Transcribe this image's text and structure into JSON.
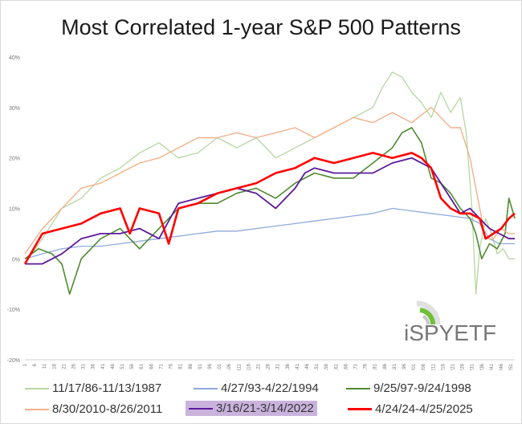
{
  "title": "Most Correlated 1-year S&P 500 Patterns",
  "logo_text": "iSPYETF",
  "chart_data": {
    "type": "line",
    "title": "Most Correlated 1-year S&P 500 Patterns",
    "xlabel": "",
    "ylabel": "",
    "xlim": [
      1,
      253
    ],
    "ylim": [
      -0.2,
      0.4
    ],
    "yticks": [
      -0.2,
      -0.1,
      0,
      0.1,
      0.2,
      0.3,
      0.4
    ],
    "ytick_labels": [
      "-20%",
      "-10%",
      "0%",
      "10%",
      "20%",
      "30%",
      "40%"
    ],
    "xticks": [
      1,
      6,
      11,
      16,
      21,
      26,
      31,
      36,
      41,
      46,
      51,
      56,
      61,
      66,
      71,
      76,
      81,
      86,
      91,
      96,
      101,
      106,
      111,
      116,
      121,
      126,
      131,
      136,
      141,
      146,
      151,
      156,
      161,
      166,
      171,
      176,
      181,
      186,
      191,
      196,
      201,
      206,
      211,
      216,
      221,
      226,
      231,
      236,
      241,
      246,
      251
    ],
    "grid": false,
    "legend_position": "bottom",
    "series": [
      {
        "name": "11/17/86-11/13/1987",
        "color": "#b5d6a2",
        "width": 1.3,
        "x": [
          1,
          10,
          20,
          30,
          40,
          50,
          60,
          70,
          80,
          90,
          100,
          110,
          120,
          130,
          140,
          150,
          160,
          170,
          180,
          185,
          190,
          195,
          200,
          205,
          210,
          215,
          220,
          225,
          228,
          231,
          233,
          235,
          238,
          241,
          244,
          247,
          250,
          253
        ],
        "y": [
          -0.01,
          0.04,
          0.1,
          0.12,
          0.16,
          0.18,
          0.21,
          0.23,
          0.2,
          0.21,
          0.24,
          0.22,
          0.24,
          0.2,
          0.22,
          0.24,
          0.26,
          0.28,
          0.3,
          0.34,
          0.37,
          0.36,
          0.33,
          0.31,
          0.28,
          0.33,
          0.29,
          0.32,
          0.25,
          0.1,
          -0.07,
          0.02,
          0.08,
          0.05,
          0.01,
          0.02,
          0.0,
          0.0
        ]
      },
      {
        "name": "4/27/93-4/22/1994",
        "color": "#8eaadb",
        "width": 1.3,
        "x": [
          1,
          10,
          20,
          30,
          40,
          50,
          60,
          70,
          80,
          90,
          100,
          110,
          120,
          130,
          140,
          150,
          160,
          170,
          180,
          190,
          200,
          210,
          220,
          230,
          235,
          240,
          245,
          250,
          253
        ],
        "y": [
          0.0,
          0.01,
          0.02,
          0.025,
          0.025,
          0.03,
          0.035,
          0.04,
          0.045,
          0.05,
          0.055,
          0.055,
          0.06,
          0.065,
          0.07,
          0.075,
          0.08,
          0.085,
          0.09,
          0.1,
          0.095,
          0.09,
          0.085,
          0.08,
          0.07,
          0.04,
          0.03,
          0.03,
          0.03
        ]
      },
      {
        "name": "9/25/97-9/24/1998",
        "color": "#4f8a2f",
        "width": 1.6,
        "x": [
          1,
          8,
          15,
          20,
          24,
          30,
          40,
          50,
          60,
          70,
          80,
          90,
          100,
          110,
          120,
          130,
          140,
          150,
          160,
          170,
          180,
          190,
          195,
          200,
          205,
          210,
          215,
          220,
          225,
          230,
          233,
          236,
          240,
          244,
          248,
          250,
          253
        ],
        "y": [
          0.0,
          0.02,
          0.01,
          -0.01,
          -0.07,
          0.0,
          0.04,
          0.06,
          0.02,
          0.06,
          0.1,
          0.11,
          0.11,
          0.13,
          0.14,
          0.12,
          0.15,
          0.17,
          0.16,
          0.16,
          0.19,
          0.22,
          0.25,
          0.26,
          0.23,
          0.16,
          0.15,
          0.13,
          0.1,
          0.08,
          0.05,
          0.0,
          0.03,
          0.02,
          0.05,
          0.12,
          0.08
        ]
      },
      {
        "name": "8/30/2010-8/26/2011",
        "color": "#f2b08a",
        "width": 1.4,
        "x": [
          1,
          10,
          20,
          30,
          40,
          50,
          60,
          70,
          80,
          90,
          100,
          110,
          120,
          130,
          140,
          150,
          160,
          170,
          180,
          190,
          200,
          210,
          220,
          225,
          230,
          235,
          238,
          242,
          246,
          250,
          253
        ],
        "y": [
          0.01,
          0.06,
          0.1,
          0.14,
          0.15,
          0.17,
          0.19,
          0.2,
          0.22,
          0.24,
          0.24,
          0.25,
          0.24,
          0.25,
          0.26,
          0.24,
          0.26,
          0.28,
          0.27,
          0.29,
          0.27,
          0.3,
          0.26,
          0.26,
          0.2,
          0.1,
          0.04,
          0.04,
          0.06,
          0.05,
          0.05
        ]
      },
      {
        "name": "3/16/21-3/14/2022",
        "color": "#5b1a9b",
        "width": 1.8,
        "highlight": true,
        "x": [
          1,
          10,
          20,
          30,
          40,
          50,
          60,
          70,
          80,
          90,
          100,
          110,
          120,
          130,
          140,
          145,
          150,
          160,
          170,
          180,
          190,
          200,
          210,
          215,
          220,
          225,
          230,
          235,
          240,
          245,
          250,
          253
        ],
        "y": [
          -0.01,
          -0.01,
          0.01,
          0.04,
          0.05,
          0.05,
          0.06,
          0.04,
          0.11,
          0.12,
          0.13,
          0.14,
          0.13,
          0.1,
          0.14,
          0.17,
          0.18,
          0.17,
          0.17,
          0.17,
          0.19,
          0.2,
          0.18,
          0.15,
          0.12,
          0.09,
          0.1,
          0.08,
          0.06,
          0.05,
          0.04,
          0.04
        ]
      },
      {
        "name": "4/24/24-4/25/2025",
        "color": "#ff0000",
        "width": 2.6,
        "x": [
          1,
          10,
          20,
          30,
          40,
          50,
          55,
          60,
          70,
          75,
          80,
          90,
          100,
          110,
          120,
          130,
          140,
          150,
          160,
          170,
          180,
          190,
          200,
          205,
          210,
          215,
          220,
          225,
          230,
          235,
          238,
          242,
          246,
          250,
          253
        ],
        "y": [
          -0.01,
          0.05,
          0.06,
          0.07,
          0.09,
          0.1,
          0.05,
          0.1,
          0.09,
          0.03,
          0.1,
          0.11,
          0.13,
          0.14,
          0.15,
          0.17,
          0.18,
          0.2,
          0.19,
          0.2,
          0.21,
          0.2,
          0.21,
          0.2,
          0.18,
          0.12,
          0.1,
          0.09,
          0.09,
          0.08,
          0.04,
          0.05,
          0.06,
          0.08,
          0.09
        ]
      }
    ]
  }
}
